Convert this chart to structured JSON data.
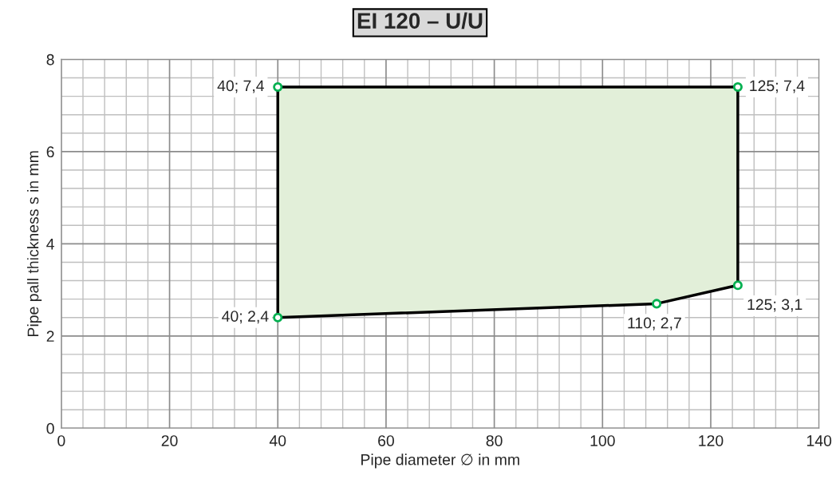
{
  "chart_data": {
    "type": "area",
    "title": "EI 120 – U/U",
    "xlabel": "Pipe diameter ∅ in mm",
    "ylabel": "Pipe pall thickness s in mm",
    "series": [
      {
        "color": "#e2efd9",
        "x": [
          40,
          110,
          125,
          125,
          40
        ],
        "values": [
          2.4,
          2.7,
          3.1,
          7.4,
          7.4
        ]
      },
      {
        "type": "scatter",
        "color": "#00b050",
        "x": [
          40,
          110,
          125,
          125,
          40
        ],
        "values": [
          2.4,
          2.7,
          3.1,
          7.4,
          7.4
        ],
        "marker": "circle",
        "value_labels": [
          "40; 2,4",
          "110; 2,7",
          "125; 3,1",
          "125; 7,4",
          "40; 7,4"
        ]
      }
    ],
    "xlim": [
      0,
      140
    ],
    "xticks": [
      0,
      20,
      40,
      60,
      80,
      100,
      120,
      140
    ],
    "ylim": [
      0,
      8
    ],
    "yticks": [
      0,
      2,
      4,
      6,
      8
    ],
    "grid": true,
    "legend": false
  }
}
